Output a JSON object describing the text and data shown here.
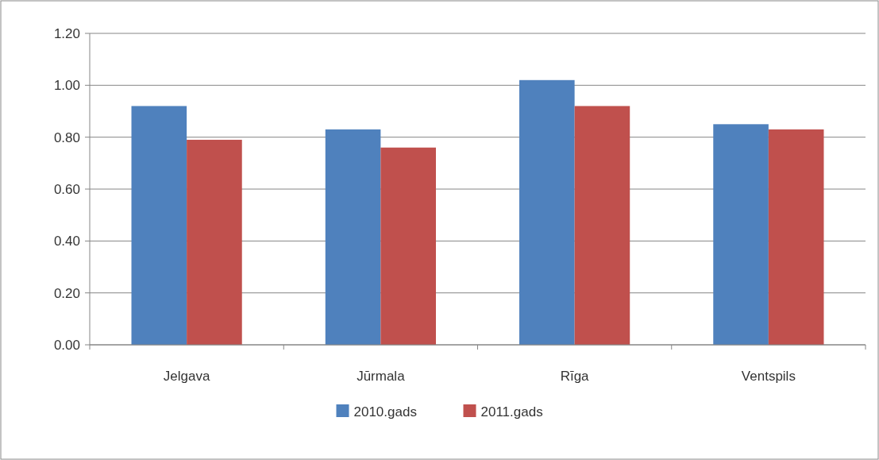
{
  "chart_data": {
    "type": "bar",
    "categories": [
      "Jelgava",
      "Jūrmala",
      "Rīga",
      "Ventspils"
    ],
    "series": [
      {
        "name": "2010.gads",
        "color": "#4f81bd",
        "values": [
          0.92,
          0.83,
          1.02,
          0.85
        ]
      },
      {
        "name": "2011.gads",
        "color": "#c0504d",
        "values": [
          0.79,
          0.76,
          0.92,
          0.83
        ]
      }
    ],
    "ylim": [
      0,
      1.2
    ],
    "yticks": [
      {
        "value": 0,
        "label": "0.00"
      },
      {
        "value": 0.2,
        "label": "0.20"
      },
      {
        "value": 0.4,
        "label": "0.40"
      },
      {
        "value": 0.6,
        "label": "0.60"
      },
      {
        "value": 0.8,
        "label": "0.80"
      },
      {
        "value": 1,
        "label": "1.00"
      },
      {
        "value": 1.2,
        "label": "1.20"
      }
    ],
    "grid": "y",
    "legend": "bottom"
  }
}
